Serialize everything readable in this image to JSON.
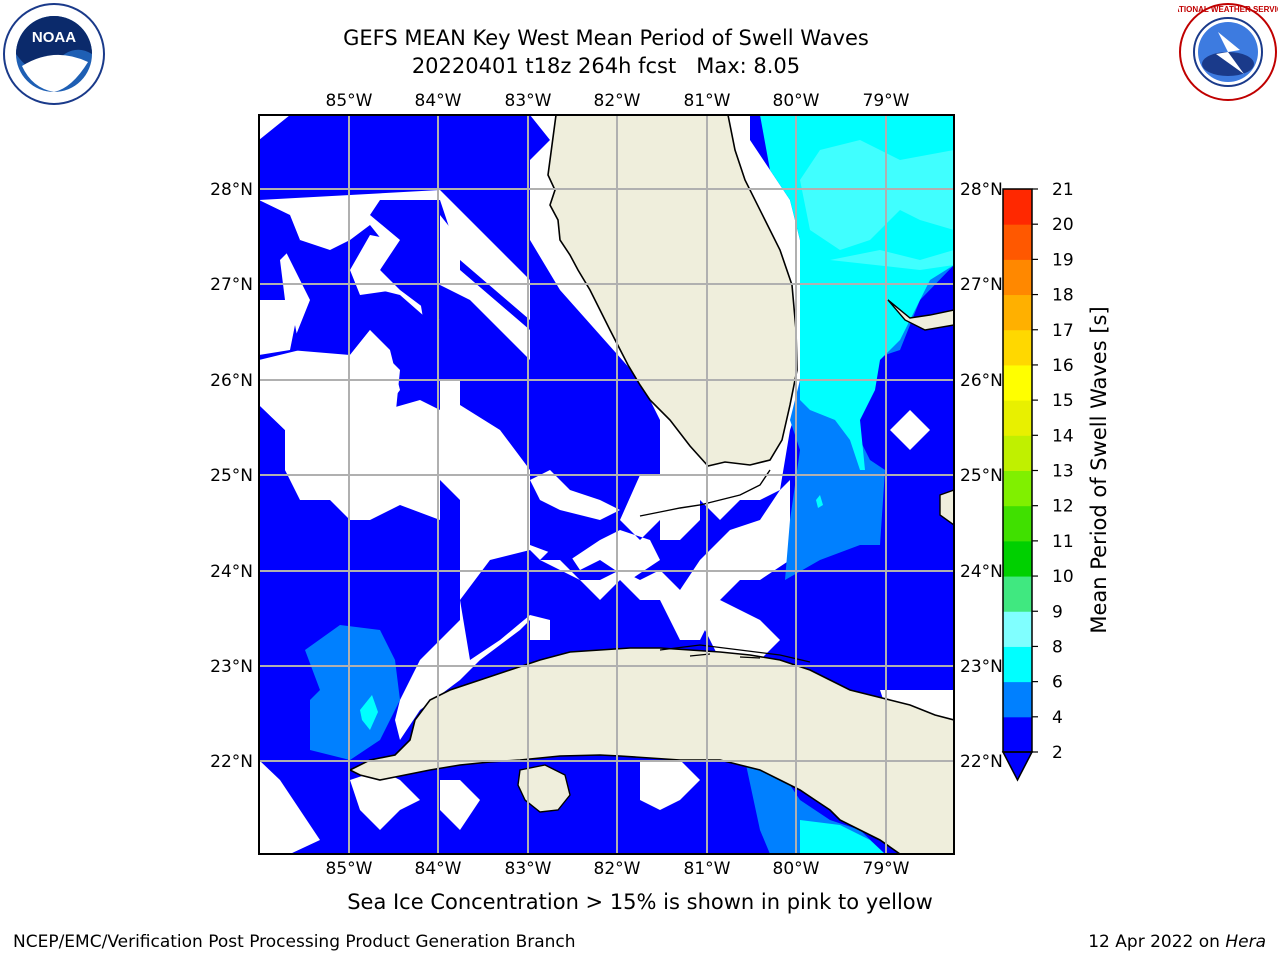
{
  "header": {
    "title_line1": "GEFS MEAN Key West Mean Period of Swell Waves",
    "title_line2": "20220401 t18z 264h fcst   Max: 8.05"
  },
  "map": {
    "lon_labels": [
      "85°W",
      "84°W",
      "83°W",
      "82°W",
      "81°W",
      "80°W",
      "79°W"
    ],
    "lat_labels": [
      "28°N",
      "27°N",
      "26°N",
      "25°N",
      "24°N",
      "23°N",
      "22°N"
    ],
    "colors": {
      "ocean_2_4": "#0000ff",
      "ocean_4_6": "#0080ff",
      "ocean_6_8": "#00ffff",
      "ocean_8_9": "#40ffff",
      "land": "#efeedc",
      "no_data": "#ffffff",
      "grid": "#b0b0b0"
    }
  },
  "colorbar": {
    "label": "Mean Period of Swell Waves [s]",
    "ticks": [
      "2",
      "4",
      "6",
      "8",
      "9",
      "10",
      "11",
      "12",
      "13",
      "14",
      "15",
      "16",
      "17",
      "18",
      "19",
      "20",
      "21"
    ],
    "colors": [
      "#0000ff",
      "#0080ff",
      "#00ffff",
      "#80ffff",
      "#40e880",
      "#00d000",
      "#40e000",
      "#80f000",
      "#c0f000",
      "#e8f000",
      "#ffff00",
      "#ffd800",
      "#ffb000",
      "#ff8800",
      "#ff5800",
      "#ff2800",
      "#ff0000"
    ]
  },
  "subtitle": "Sea Ice Concentration > 15% is shown in pink to yellow",
  "footer": {
    "left": "NCEP/EMC/Verification Post Processing Product Generation Branch",
    "right_date": "12 Apr 2022 on ",
    "right_host": "Hera"
  },
  "logos": {
    "noaa_text": "NOAA",
    "nws_text": "NATIONAL WEATHER SERVICE"
  }
}
